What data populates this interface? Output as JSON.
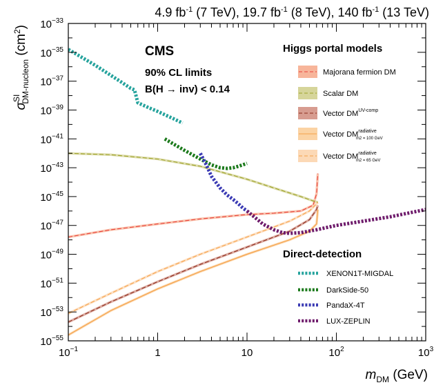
{
  "chart_data": {
    "type": "line",
    "title": "4.9 fb-1 (7 TeV), 19.7 fb-1 (8 TeV), 140 fb-1 (13 TeV)",
    "title_parts": {
      "a": "4.9 fb",
      "a_sup": "-1",
      "a_rest": " (7 TeV), 19.7 fb",
      "b_sup": "-1",
      "b_rest": " (8 TeV), 140 fb",
      "c_sup": "-1",
      "c_rest": " (13 TeV)"
    },
    "experiment": "CMS",
    "annotation_1": "90% CL limits",
    "annotation_2": "B(H → inv) < 0.14",
    "xlabel": "m_DM (GeV)",
    "xlabel_parts": {
      "sym": "m",
      "sub": "DM",
      "unit": " (GeV)"
    },
    "ylabel": "σSI DM-nucleon (cm2)",
    "ylabel_parts": {
      "sym": "σ",
      "sup": "SI",
      "sub": "DM-nucleon",
      "unit": " (cm",
      "unit_sup": "2",
      "unit_end": ")"
    },
    "xscale": "log",
    "yscale": "log",
    "xlim": [
      0.1,
      1000
    ],
    "ylim": [
      1e-55,
      1e-33
    ],
    "x_ticks": [
      {
        "v": 0.1,
        "base": "10",
        "exp": "−1"
      },
      {
        "v": 1,
        "base": "1",
        "exp": ""
      },
      {
        "v": 10,
        "base": "10",
        "exp": ""
      },
      {
        "v": 100,
        "base": "10",
        "exp": "2"
      },
      {
        "v": 1000,
        "base": "10",
        "exp": "3"
      }
    ],
    "y_ticks": [
      {
        "v": -33,
        "base": "10",
        "exp": "−33"
      },
      {
        "v": -35,
        "base": "10",
        "exp": "−35"
      },
      {
        "v": -37,
        "base": "10",
        "exp": "−37"
      },
      {
        "v": -39,
        "base": "10",
        "exp": "−39"
      },
      {
        "v": -41,
        "base": "10",
        "exp": "−41"
      },
      {
        "v": -43,
        "base": "10",
        "exp": "−43"
      },
      {
        "v": -45,
        "base": "10",
        "exp": "−45"
      },
      {
        "v": -47,
        "base": "10",
        "exp": "−47"
      },
      {
        "v": -49,
        "base": "10",
        "exp": "−49"
      },
      {
        "v": -51,
        "base": "10",
        "exp": "−51"
      },
      {
        "v": -53,
        "base": "10",
        "exp": "−53"
      },
      {
        "v": -55,
        "base": "10",
        "exp": "−55"
      }
    ],
    "legend_higgs_title": "Higgs portal models",
    "legend_dd_title": "Direct-detection",
    "legend_placement": "right",
    "series": [
      {
        "name": "Majorana fermion DM",
        "group": "higgs",
        "color": "#e8413b",
        "band": "#f7b59a",
        "style": "dashed",
        "x": [
          0.1,
          0.3,
          1,
          3,
          10,
          20,
          40,
          55,
          60,
          62
        ],
        "log10y": [
          -47.8,
          -47.3,
          -46.9,
          -46.55,
          -46.25,
          -46.15,
          -46.0,
          -45.6,
          -44.8,
          -43.4
        ]
      },
      {
        "name": "Scalar DM",
        "group": "higgs",
        "color": "#9ea229",
        "band": "#d6d59a",
        "style": "dashed",
        "x": [
          0.1,
          0.3,
          1,
          3,
          10,
          20,
          40,
          55,
          62
        ],
        "log10y": [
          -42.0,
          -42.1,
          -42.4,
          -42.9,
          -43.8,
          -44.4,
          -45.0,
          -45.3,
          -45.4
        ]
      },
      {
        "name": "Vector DM",
        "name_sup": "UV-comp",
        "group": "higgs",
        "color": "#8b2b1b",
        "band": "#d79c90",
        "style": "dashed",
        "x": [
          0.1,
          0.3,
          1,
          3,
          10,
          30,
          50,
          60,
          62
        ],
        "log10y": [
          -53.7,
          -52.3,
          -50.9,
          -49.7,
          -48.5,
          -47.4,
          -46.6,
          -45.9,
          -45.6
        ]
      },
      {
        "name": "Vector DM",
        "name_sup": "radiative",
        "name_sub": "m2 = 100 GeV",
        "group": "higgs",
        "color": "#f5a14a",
        "band": "#fbd3a4",
        "style": "solid",
        "x": [
          0.1,
          0.3,
          1,
          3,
          10,
          30,
          50,
          60,
          62
        ],
        "log10y": [
          -54.6,
          -52.9,
          -51.4,
          -50.2,
          -49.0,
          -48.0,
          -47.4,
          -46.9,
          -45.9
        ]
      },
      {
        "name": "Vector DM",
        "name_sup": "radiative",
        "name_sub": "m2 = 65 GeV",
        "group": "higgs",
        "color": "#f5a14a",
        "band": "#fcd9b6",
        "style": "dashed",
        "x": [
          0.1,
          0.3,
          1,
          3,
          10,
          30,
          50,
          60,
          62
        ],
        "log10y": [
          -53.1,
          -51.7,
          -50.2,
          -49.0,
          -47.8,
          -46.7,
          -46.0,
          -45.5,
          -45.4
        ]
      },
      {
        "name": "XENON1T-MIGDAL",
        "group": "dd",
        "color": "#26a39d",
        "style": "dotted",
        "x": [
          0.1,
          0.2,
          0.3,
          0.4,
          0.5,
          0.55,
          0.6,
          0.8,
          1.0,
          1.5,
          1.9
        ],
        "log10y": [
          -34.8,
          -35.9,
          -36.6,
          -37.1,
          -37.5,
          -37.6,
          -38.5,
          -38.85,
          -39.1,
          -39.6,
          -39.9
        ]
      },
      {
        "name": "DarkSide-50",
        "group": "dd",
        "color": "#1c7a1c",
        "style": "dotted",
        "x": [
          1.2,
          2,
          3,
          4,
          5,
          6,
          7,
          8,
          10
        ],
        "log10y": [
          -41.0,
          -41.8,
          -42.4,
          -42.8,
          -43.0,
          -43.05,
          -43.0,
          -42.9,
          -42.7
        ]
      },
      {
        "name": "PandaX-4T",
        "group": "dd",
        "color": "#3a3ab4",
        "style": "dotted",
        "x": [
          3.0,
          3.5,
          4,
          5,
          6,
          7,
          8,
          9,
          10
        ],
        "log10y": [
          -42.0,
          -42.8,
          -43.6,
          -44.4,
          -44.9,
          -45.2,
          -45.5,
          -45.8,
          -46.0
        ]
      },
      {
        "name": "LUX-ZEPLIN",
        "group": "dd",
        "color": "#6e1b6b",
        "style": "dotted",
        "x": [
          10,
          12,
          15,
          20,
          25,
          30,
          40,
          60,
          100,
          200,
          400,
          1000
        ],
        "log10y": [
          -46.0,
          -46.4,
          -46.9,
          -47.3,
          -47.5,
          -47.55,
          -47.5,
          -47.3,
          -47.0,
          -46.7,
          -46.4,
          -45.9
        ]
      }
    ]
  }
}
